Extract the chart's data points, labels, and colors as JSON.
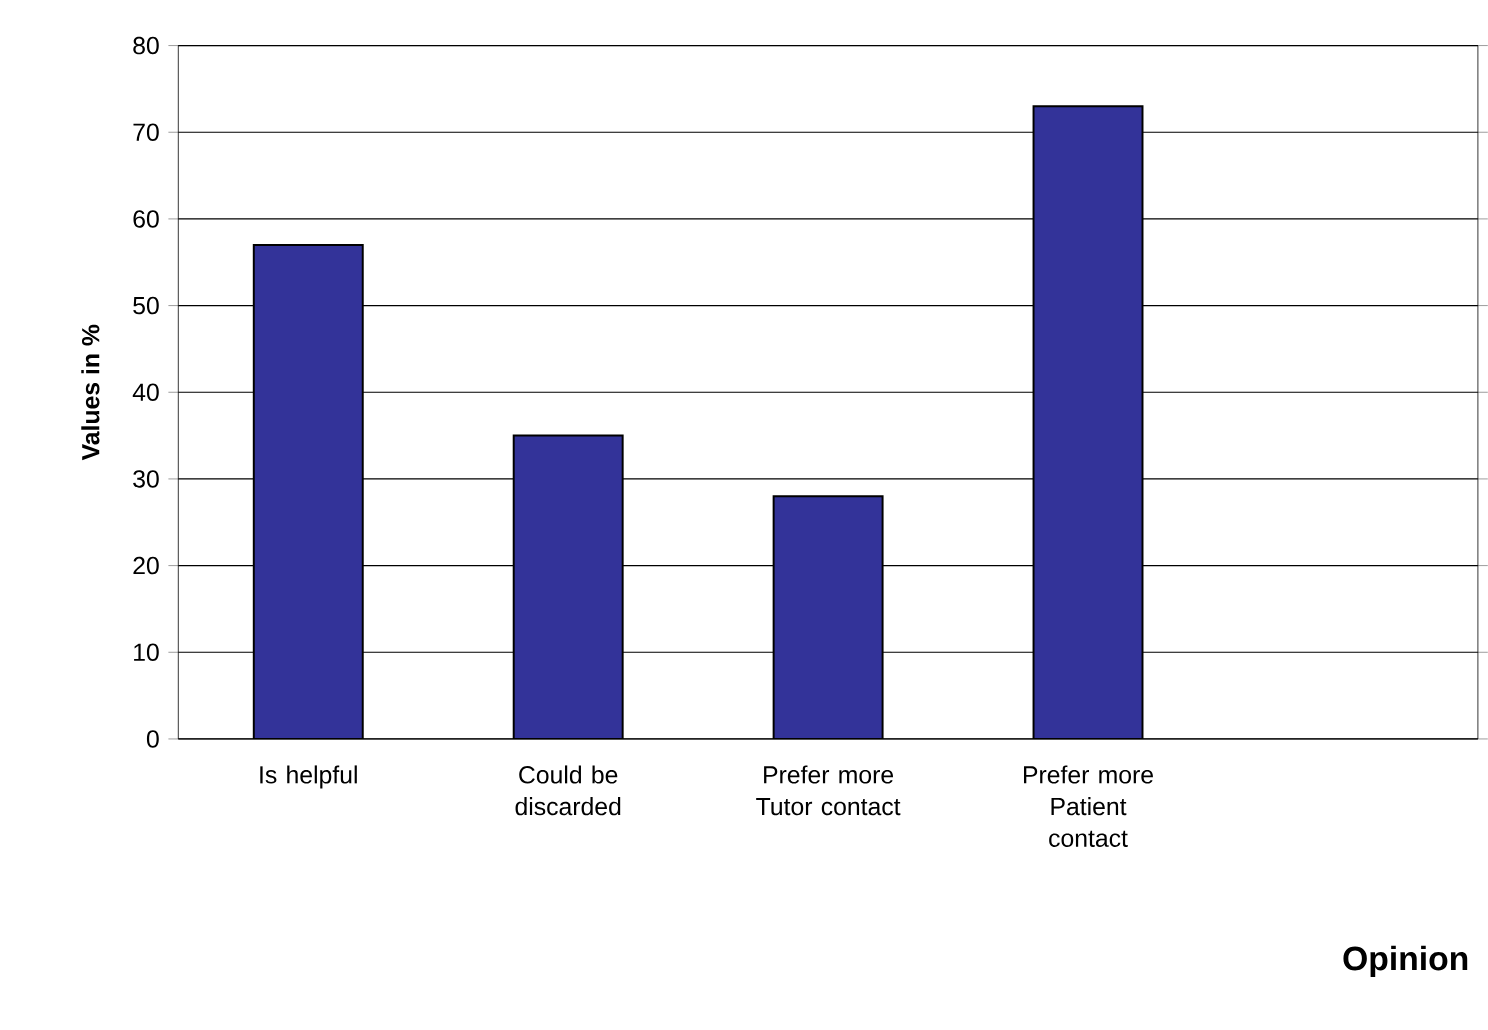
{
  "chart_data": {
    "type": "bar",
    "xlabel": "Opinion",
    "ylabel": "Values in %",
    "categories": [
      "Is helpful",
      "Could be discarded",
      "Prefer more Tutor contact",
      "Prefer more Patient contact",
      null
    ],
    "values": [
      57,
      35,
      28,
      73,
      null
    ],
    "color": "#333399",
    "ylim": [
      0,
      80
    ],
    "yticks": [
      0,
      10,
      20,
      30,
      40,
      50,
      60,
      70,
      80
    ],
    "grid": "y"
  }
}
